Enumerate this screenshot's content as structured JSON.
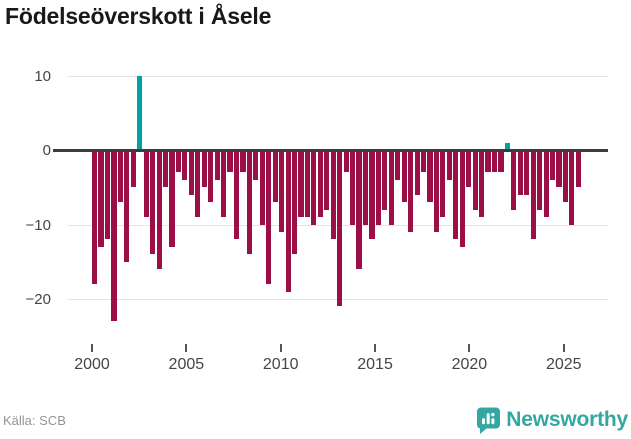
{
  "title": "Födelseöverskott i Åsele",
  "footer": {
    "source": "Källa: SCB",
    "logo_text": "Newsworthy"
  },
  "colors": {
    "negative_bar": "#9b0f46",
    "positive_bar": "#00a2a4",
    "zero_line": "#3c3c3c",
    "gridline": "#e4e4e4",
    "axis_text": "#454545",
    "logo_teal": "#35a7a2"
  },
  "chart_data": {
    "type": "bar",
    "title": "Födelseöverskott i Åsele",
    "xlabel": "",
    "ylabel": "",
    "x_start_year": 2000,
    "bars_per_year": 3,
    "x_end_approx": 2025.3,
    "ylim": [
      -26,
      12.5
    ],
    "grid": true,
    "yticks": [
      10,
      0,
      -10,
      -20
    ],
    "ytick_labels": [
      "10",
      "0",
      "−10",
      "−20"
    ],
    "xticks": [
      2000,
      2005,
      2010,
      2015,
      2020,
      2025
    ],
    "xtick_labels": [
      "2000",
      "2005",
      "2010",
      "2015",
      "2020",
      "2025"
    ],
    "values": [
      -18,
      -13,
      -12,
      -23,
      -7,
      -15,
      -5,
      10,
      -9,
      -14,
      -16,
      -5,
      -13,
      -3,
      -4,
      -6,
      -9,
      -5,
      -7,
      -4,
      -9,
      -3,
      -12,
      -3,
      -14,
      -4,
      -10,
      -18,
      -7,
      -11,
      -19,
      -14,
      -9,
      -9,
      -10,
      -9,
      -8,
      -12,
      -21,
      -3,
      -10,
      -16,
      -10,
      -12,
      -10,
      -8,
      -10,
      -4,
      -7,
      -11,
      -6,
      -3,
      -7,
      -11,
      -9,
      -4,
      -12,
      -13,
      -5,
      -8,
      -9,
      -3,
      -3,
      -3,
      1,
      -8,
      -6,
      -6,
      -12,
      -8,
      -9,
      -4,
      -5,
      -7,
      -10,
      -5
    ]
  }
}
